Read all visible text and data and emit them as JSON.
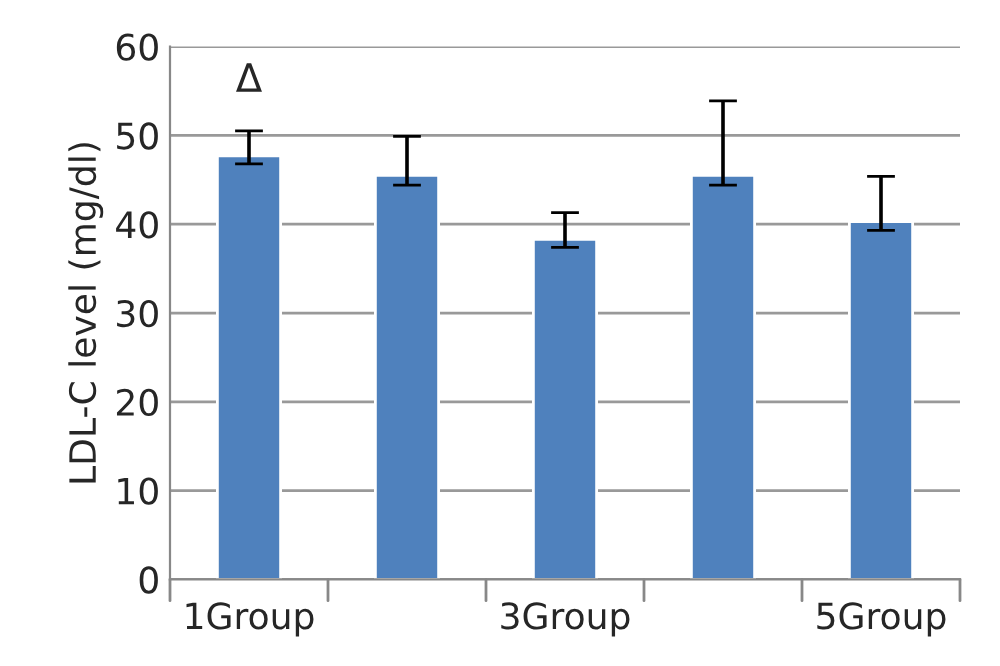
{
  "chart_data": {
    "type": "bar",
    "ylabel": "LDL-C level (mg/dl)",
    "categories": [
      "1Group",
      null,
      "3Group",
      null,
      "5Group"
    ],
    "series": [
      {
        "color": "#4f81bd",
        "values": [
          47.7,
          45.5,
          38.3,
          45.5,
          40.3
        ],
        "errors": [
          [
            46.8,
            50.5
          ],
          [
            44.4,
            49.9
          ],
          [
            37.4,
            41.3
          ],
          [
            44.4,
            53.9
          ],
          [
            39.3,
            45.4
          ]
        ]
      }
    ],
    "ylim": [
      0,
      60
    ],
    "yticks": [
      0,
      10,
      20,
      30,
      40,
      50,
      60
    ],
    "grid": "y",
    "legend": false,
    "annotations": [
      "Δ"
    ]
  }
}
